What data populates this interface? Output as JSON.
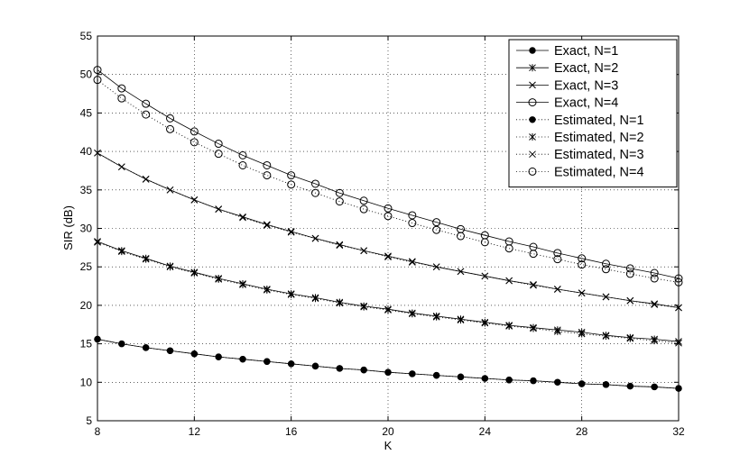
{
  "chart_data": {
    "type": "line",
    "title": "",
    "xlabel": "K",
    "ylabel": "SIR (dB)",
    "xlim": [
      8,
      32
    ],
    "ylim": [
      5,
      55
    ],
    "xticks": [
      8,
      12,
      16,
      20,
      24,
      28,
      32
    ],
    "yticks": [
      5,
      10,
      15,
      20,
      25,
      30,
      35,
      40,
      45,
      50,
      55
    ],
    "grid": true,
    "legend_position": "top-right",
    "x": [
      8,
      9,
      10,
      11,
      12,
      13,
      14,
      15,
      16,
      17,
      18,
      19,
      20,
      21,
      22,
      23,
      24,
      25,
      26,
      27,
      28,
      29,
      30,
      31,
      32
    ],
    "series": [
      {
        "name": "Exact, N=1",
        "line": "solid",
        "marker": "filled-circle",
        "values": [
          15.6,
          15.0,
          14.5,
          14.1,
          13.7,
          13.3,
          13.0,
          12.7,
          12.4,
          12.1,
          11.8,
          11.6,
          11.3,
          11.1,
          10.9,
          10.7,
          10.5,
          10.3,
          10.2,
          10.0,
          9.8,
          9.7,
          9.5,
          9.4,
          9.2
        ]
      },
      {
        "name": "Exact, N=2",
        "line": "solid",
        "marker": "asterisk",
        "values": [
          28.3,
          27.1,
          26.1,
          25.1,
          24.3,
          23.5,
          22.8,
          22.1,
          21.5,
          21.0,
          20.4,
          19.9,
          19.5,
          19.0,
          18.6,
          18.2,
          17.8,
          17.4,
          17.1,
          16.8,
          16.5,
          16.1,
          15.8,
          15.6,
          15.3
        ]
      },
      {
        "name": "Exact, N=3",
        "line": "solid",
        "marker": "cross",
        "values": [
          39.8,
          38.0,
          36.4,
          35.0,
          33.7,
          32.5,
          31.5,
          30.5,
          29.6,
          28.7,
          27.9,
          27.1,
          26.4,
          25.7,
          25.0,
          24.4,
          23.8,
          23.2,
          22.7,
          22.1,
          21.6,
          21.1,
          20.6,
          20.2,
          19.7
        ]
      },
      {
        "name": "Exact, N=4",
        "line": "solid",
        "marker": "open-circle",
        "values": [
          50.6,
          48.2,
          46.2,
          44.3,
          42.6,
          41.0,
          39.5,
          38.2,
          36.9,
          35.8,
          34.6,
          33.6,
          32.6,
          31.7,
          30.8,
          29.9,
          29.1,
          28.3,
          27.6,
          26.8,
          26.1,
          25.4,
          24.8,
          24.2,
          23.5
        ]
      },
      {
        "name": "Estimated, N=1",
        "line": "dotted",
        "marker": "filled-circle",
        "values": [
          15.6,
          15.0,
          14.5,
          14.1,
          13.7,
          13.3,
          13.0,
          12.7,
          12.4,
          12.1,
          11.8,
          11.6,
          11.3,
          11.1,
          10.9,
          10.7,
          10.5,
          10.3,
          10.2,
          10.0,
          9.8,
          9.7,
          9.5,
          9.4,
          9.2
        ]
      },
      {
        "name": "Estimated, N=2",
        "line": "dotted",
        "marker": "asterisk",
        "values": [
          28.2,
          27.0,
          26.0,
          25.0,
          24.2,
          23.4,
          22.7,
          22.0,
          21.4,
          20.9,
          20.3,
          19.8,
          19.4,
          18.9,
          18.5,
          18.1,
          17.7,
          17.3,
          17.0,
          16.6,
          16.3,
          16.0,
          15.7,
          15.4,
          15.1
        ]
      },
      {
        "name": "Estimated, N=3",
        "line": "dotted",
        "marker": "cross",
        "values": [
          39.8,
          38.0,
          36.4,
          35.0,
          33.7,
          32.5,
          31.4,
          30.4,
          29.5,
          28.7,
          27.8,
          27.1,
          26.3,
          25.6,
          25.0,
          24.4,
          23.8,
          23.2,
          22.6,
          22.1,
          21.6,
          21.1,
          20.6,
          20.1,
          19.7
        ]
      },
      {
        "name": "Estimated, N=4",
        "line": "dotted",
        "marker": "open-circle",
        "values": [
          49.3,
          46.9,
          44.8,
          42.9,
          41.2,
          39.7,
          38.2,
          36.9,
          35.7,
          34.6,
          33.5,
          32.5,
          31.6,
          30.7,
          29.8,
          29.0,
          28.2,
          27.4,
          26.7,
          26.0,
          25.3,
          24.7,
          24.1,
          23.5,
          23.0
        ]
      }
    ]
  }
}
